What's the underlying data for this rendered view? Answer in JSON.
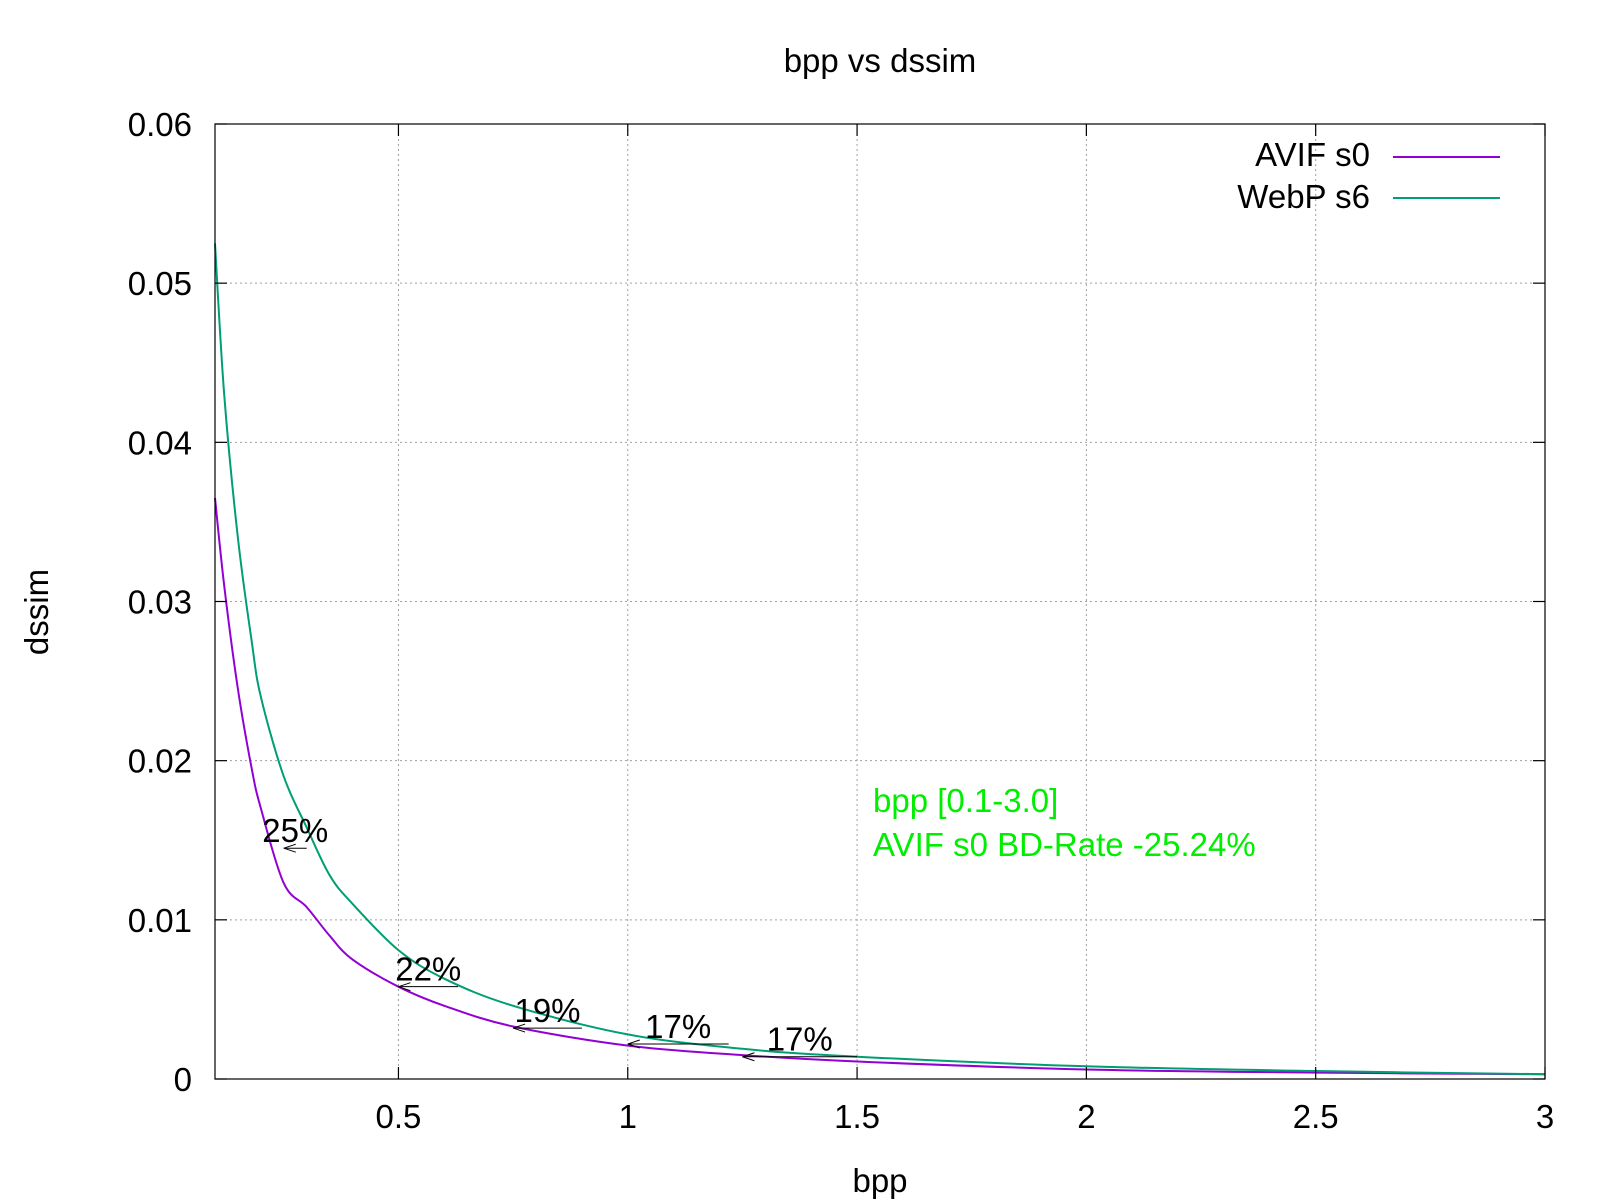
{
  "chart_data": {
    "type": "line",
    "title": "bpp vs dssim",
    "xlabel": "bpp",
    "ylabel": "dssim",
    "xlim": [
      0.1,
      3.0
    ],
    "ylim": [
      0,
      0.06
    ],
    "xticks": [
      0.5,
      1,
      1.5,
      2,
      2.5,
      3
    ],
    "yticks": [
      0,
      0.01,
      0.02,
      0.03,
      0.04,
      0.05,
      0.06
    ],
    "grid": true,
    "legend_position": "top-right",
    "series": [
      {
        "name": "AVIF s0",
        "color": "#9400d3",
        "x": [
          0.1,
          0.12,
          0.15,
          0.18,
          0.2,
          0.25,
          0.3,
          0.35,
          0.4,
          0.5,
          0.6,
          0.75,
          1.0,
          1.25,
          1.5,
          2.0,
          2.5,
          3.0
        ],
        "y": [
          0.0365,
          0.031,
          0.0245,
          0.0195,
          0.017,
          0.0123,
          0.0108,
          0.009,
          0.0075,
          0.0058,
          0.0046,
          0.0033,
          0.0021,
          0.0015,
          0.0011,
          0.0006,
          0.0004,
          0.0003
        ]
      },
      {
        "name": "WebP s6",
        "color": "#009e73",
        "x": [
          0.1,
          0.12,
          0.15,
          0.18,
          0.2,
          0.25,
          0.3,
          0.35,
          0.4,
          0.5,
          0.6,
          0.75,
          1.0,
          1.25,
          1.5,
          2.0,
          2.5,
          3.0
        ],
        "y": [
          0.0525,
          0.043,
          0.034,
          0.0275,
          0.024,
          0.019,
          0.0158,
          0.0128,
          0.011,
          0.0081,
          0.0063,
          0.0046,
          0.0028,
          0.0019,
          0.0014,
          0.0008,
          0.0005,
          0.0003
        ]
      }
    ],
    "annotations": [
      {
        "label": "25%",
        "y": 0.0145,
        "x_from": 0.3,
        "x_to": 0.25
      },
      {
        "label": "22%",
        "y": 0.0058,
        "x_from": 0.63,
        "x_to": 0.5
      },
      {
        "label": "19%",
        "y": 0.0032,
        "x_from": 0.9,
        "x_to": 0.75
      },
      {
        "label": "17%",
        "y": 0.0022,
        "x_from": 1.22,
        "x_to": 1.0
      },
      {
        "label": "17%",
        "y": 0.0014,
        "x_from": 1.5,
        "x_to": 1.25
      }
    ],
    "note": {
      "lines": [
        "bpp [0.1-3.0]",
        "AVIF s0 BD-Rate -25.24%"
      ],
      "color": "#00ee00"
    }
  }
}
